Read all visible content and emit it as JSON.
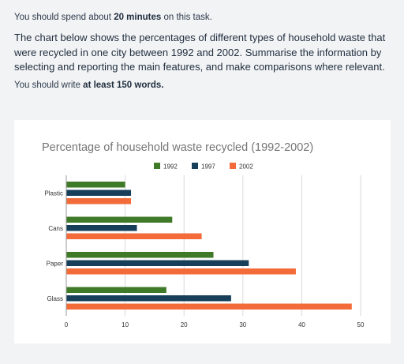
{
  "task": {
    "time_prefix": "You should spend about ",
    "time_bold": "20 minutes",
    "time_suffix": " on this task.",
    "prompt": "The chart below shows the percentages of different types of household waste that were recycled in one city between 1992 and 2002. Summarise the information by selecting and reporting the main features, and make comparisons where relevant.",
    "words_prefix": "You should write ",
    "words_bold": "at least 150 words."
  },
  "colors": {
    "1992": "#3f7a28",
    "1997": "#173f5a",
    "2002": "#f26b38",
    "grid": "#d9d9d9",
    "axis_text": "#333333",
    "title": "#757575"
  },
  "chart_data": {
    "type": "bar",
    "orientation": "horizontal",
    "title": "Percentage of household waste recycled (1992-2002)",
    "legend_position": "top",
    "categories": [
      "Plastic",
      "Cans",
      "Paper",
      "Glass"
    ],
    "series": [
      {
        "name": "1992",
        "values": [
          10,
          18,
          25,
          17
        ]
      },
      {
        "name": "1997",
        "values": [
          11,
          12,
          31,
          28
        ]
      },
      {
        "name": "2002",
        "values": [
          11,
          23,
          39,
          48.5
        ]
      }
    ],
    "x_ticks": [
      0,
      10,
      20,
      30,
      40,
      50
    ],
    "xlim": [
      0,
      50
    ],
    "grid": true
  }
}
